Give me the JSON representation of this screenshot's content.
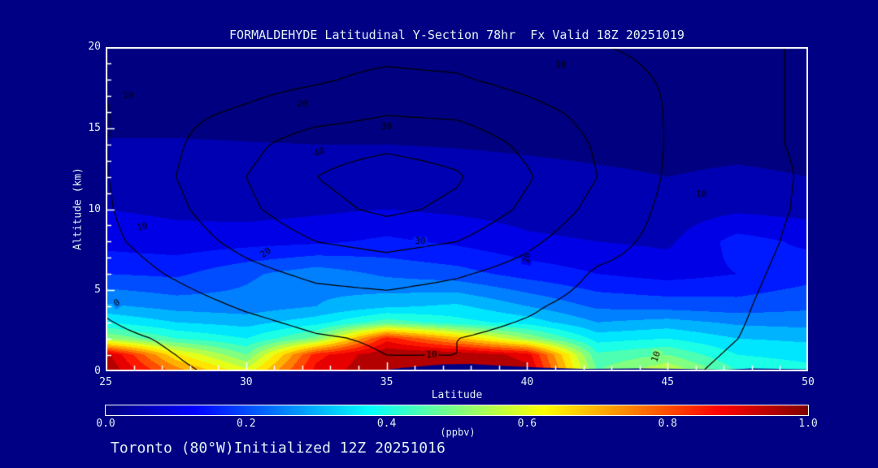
{
  "title": "FORMALDEHYDE Latitudinal Y-Section 78hr  Fx Valid 18Z 20251019",
  "footer": "Toronto (80°W)Initialized 12Z 20251016",
  "colors": {
    "background": "#000084",
    "text": "#dff1f4",
    "frame": "#ffffff",
    "contour_line": "#000000",
    "terrain": "#000084"
  },
  "chart_data": {
    "type": "heatmap",
    "title": "FORMALDEHYDE Latitudinal Y-Section 78hr  Fx Valid 18Z 20251019",
    "xlabel": "Latitude",
    "ylabel": "Altitude (km)",
    "xlim": [
      25,
      50
    ],
    "ylim": [
      0,
      20
    ],
    "xticks_major": [
      25,
      30,
      35,
      40,
      45,
      50
    ],
    "xtick_minor_step": 1,
    "yticks_major": [
      0,
      5,
      10,
      15,
      20
    ],
    "ytick_minor_step": 1,
    "colorbar": {
      "min": 0.0,
      "max": 1.0,
      "ticks": [
        "0.0",
        "0.2",
        "0.4",
        "0.6",
        "0.8",
        "1.0"
      ],
      "unit": "(ppbv)"
    },
    "colormap": {
      "stops": [
        [
          0.0,
          "#000080"
        ],
        [
          0.125,
          "#0000ff"
        ],
        [
          0.375,
          "#00ffff"
        ],
        [
          0.625,
          "#ffff00"
        ],
        [
          0.875,
          "#ff0000"
        ],
        [
          1.0,
          "#800000"
        ]
      ],
      "band_step": 0.05
    },
    "fill_field": {
      "name": "formaldehyde_ppbv",
      "lats": [
        25,
        27.5,
        30,
        32.5,
        35,
        37.5,
        40,
        42.5,
        45,
        47.5,
        50
      ],
      "alts": [
        0,
        1,
        2,
        3,
        4,
        6,
        8,
        10,
        12,
        14,
        16,
        20
      ],
      "values": [
        [
          1.0,
          0.78,
          0.62,
          0.92,
          1.0,
          1.0,
          0.97,
          0.5,
          0.6,
          0.45,
          0.42
        ],
        [
          0.97,
          0.66,
          0.5,
          0.88,
          1.0,
          1.0,
          0.93,
          0.46,
          0.5,
          0.4,
          0.38
        ],
        [
          0.55,
          0.45,
          0.4,
          0.52,
          0.88,
          0.72,
          0.55,
          0.38,
          0.4,
          0.35,
          0.34
        ],
        [
          0.4,
          0.35,
          0.33,
          0.38,
          0.48,
          0.42,
          0.38,
          0.3,
          0.32,
          0.29,
          0.28
        ],
        [
          0.31,
          0.28,
          0.27,
          0.3,
          0.34,
          0.36,
          0.3,
          0.24,
          0.23,
          0.22,
          0.24
        ],
        [
          0.2,
          0.19,
          0.24,
          0.28,
          0.24,
          0.22,
          0.18,
          0.15,
          0.13,
          0.15,
          0.18
        ],
        [
          0.13,
          0.12,
          0.13,
          0.14,
          0.16,
          0.14,
          0.11,
          0.1,
          0.09,
          0.17,
          0.14
        ],
        [
          0.1,
          0.09,
          0.08,
          0.09,
          0.1,
          0.09,
          0.08,
          0.07,
          0.07,
          0.09,
          0.08
        ],
        [
          0.08,
          0.075,
          0.065,
          0.06,
          0.07,
          0.065,
          0.06,
          0.055,
          0.05,
          0.055,
          0.05
        ],
        [
          0.055,
          0.055,
          0.052,
          0.05,
          0.05,
          0.048,
          0.045,
          0.042,
          0.04,
          0.042,
          0.04
        ],
        [
          0.03,
          0.03,
          0.03,
          0.03,
          0.03,
          0.03,
          0.035,
          0.035,
          0.035,
          0.035,
          0.03
        ],
        [
          0.02,
          0.02,
          0.02,
          0.02,
          0.02,
          0.02,
          0.02,
          0.02,
          0.02,
          0.02,
          0.02
        ]
      ]
    },
    "line_field": {
      "name": "overlay_contours",
      "levels": [
        0,
        10,
        20,
        30,
        40
      ],
      "lats": [
        25,
        27.5,
        30,
        32.5,
        35,
        37.5,
        40,
        42.5,
        45,
        47.5,
        50
      ],
      "alts": [
        0,
        2,
        4,
        6,
        8,
        10,
        12,
        14,
        16,
        18,
        20
      ],
      "values": [
        [
          -4,
          -1,
          2,
          6,
          9,
          10,
          9,
          8,
          9,
          11,
          14
        ],
        [
          -2,
          1,
          5,
          9,
          11,
          10,
          8,
          7,
          8,
          10,
          14
        ],
        [
          1,
          6,
          11,
          15,
          16,
          14,
          11,
          7,
          7.5,
          9,
          14
        ],
        [
          5,
          11,
          17,
          22,
          24,
          21,
          16,
          9,
          7,
          8,
          13
        ],
        [
          8,
          15,
          23,
          30,
          33,
          30,
          22,
          13,
          7.5,
          7,
          12
        ],
        [
          9,
          18,
          28,
          37,
          42,
          38,
          28,
          17,
          8,
          7,
          11
        ],
        [
          9.5,
          20,
          30,
          40,
          45,
          41,
          31,
          20,
          9,
          8,
          10.5
        ],
        [
          9.5,
          19,
          27,
          36,
          38,
          36,
          28,
          19,
          9.5,
          9,
          10.5
        ],
        [
          9.5,
          18,
          21,
          25,
          29,
          28,
          23,
          17,
          9.5,
          9,
          10.5
        ],
        [
          10.5,
          16,
          17,
          19,
          22,
          21,
          17,
          12,
          9.5,
          9,
          10.5
        ],
        [
          12.5,
          15,
          16,
          17,
          17,
          16,
          13,
          10.2,
          9,
          9,
          10.5
        ]
      ]
    },
    "contour_labels": [
      {
        "text": "10",
        "lat": 25.8,
        "alt": 17.0,
        "rot": 0
      },
      {
        "text": "20",
        "lat": 32.0,
        "alt": 16.5,
        "rot": 0
      },
      {
        "text": "30",
        "lat": 35.0,
        "alt": 15.1,
        "rot": 0
      },
      {
        "text": "40",
        "lat": 32.6,
        "alt": 13.5,
        "rot": -20
      },
      {
        "text": "10",
        "lat": 41.2,
        "alt": 18.9,
        "rot": 0
      },
      {
        "text": "10",
        "lat": 46.2,
        "alt": 10.9,
        "rot": 0
      },
      {
        "text": "10",
        "lat": 26.3,
        "alt": 8.9,
        "rot": -15
      },
      {
        "text": "20",
        "lat": 30.7,
        "alt": 7.3,
        "rot": -35
      },
      {
        "text": "30",
        "lat": 36.2,
        "alt": 8.0,
        "rot": 0
      },
      {
        "text": "0",
        "lat": 25.4,
        "alt": 4.2,
        "rot": -30
      },
      {
        "text": "10",
        "lat": 36.6,
        "alt": 1.0,
        "rot": 0
      },
      {
        "text": "20",
        "lat": 40.0,
        "alt": 7.0,
        "rot": -80
      },
      {
        "text": "10",
        "lat": 44.6,
        "alt": 0.9,
        "rot": -70
      }
    ],
    "terrain": [
      [
        34.5,
        0
      ],
      [
        35.5,
        0.2
      ],
      [
        37,
        0.42
      ],
      [
        38,
        0.45
      ],
      [
        39,
        0.35
      ],
      [
        40.5,
        0.22
      ],
      [
        42,
        0.15
      ],
      [
        44,
        0.18
      ],
      [
        45.5,
        0.15
      ],
      [
        47,
        0.1
      ],
      [
        48,
        0.18
      ],
      [
        49,
        0.15
      ],
      [
        50,
        0.12
      ],
      [
        50,
        0
      ]
    ]
  }
}
